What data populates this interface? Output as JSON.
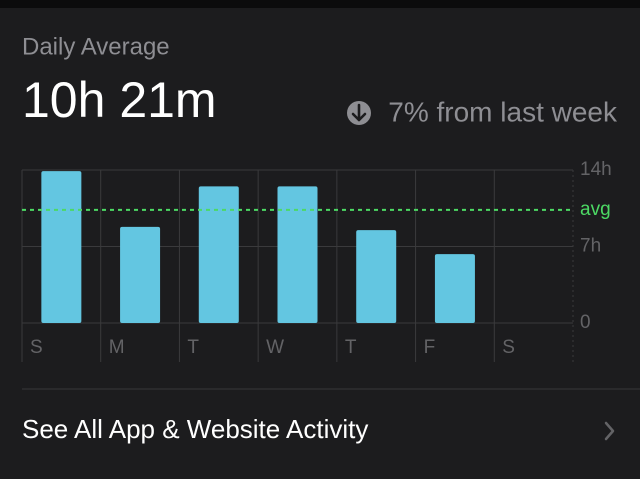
{
  "header": {
    "label": "Daily Average",
    "total": "10h 21m",
    "change": "7% from last week"
  },
  "chart_data": {
    "type": "bar",
    "categories": [
      "S",
      "M",
      "T",
      "W",
      "T",
      "F",
      "S"
    ],
    "values": [
      13.9,
      8.8,
      12.5,
      12.5,
      8.5,
      6.3,
      null
    ],
    "color": "#63c6e1",
    "ylim": [
      0,
      14
    ],
    "yticks": [
      0,
      {
        "value": 7,
        "label": "7h"
      },
      {
        "value": 14,
        "label": "14h"
      }
    ],
    "average": {
      "value": 10.35,
      "label": "avg",
      "color": "#4cd964"
    },
    "grid": true
  },
  "footer": {
    "link": "See All App & Website Activity"
  }
}
